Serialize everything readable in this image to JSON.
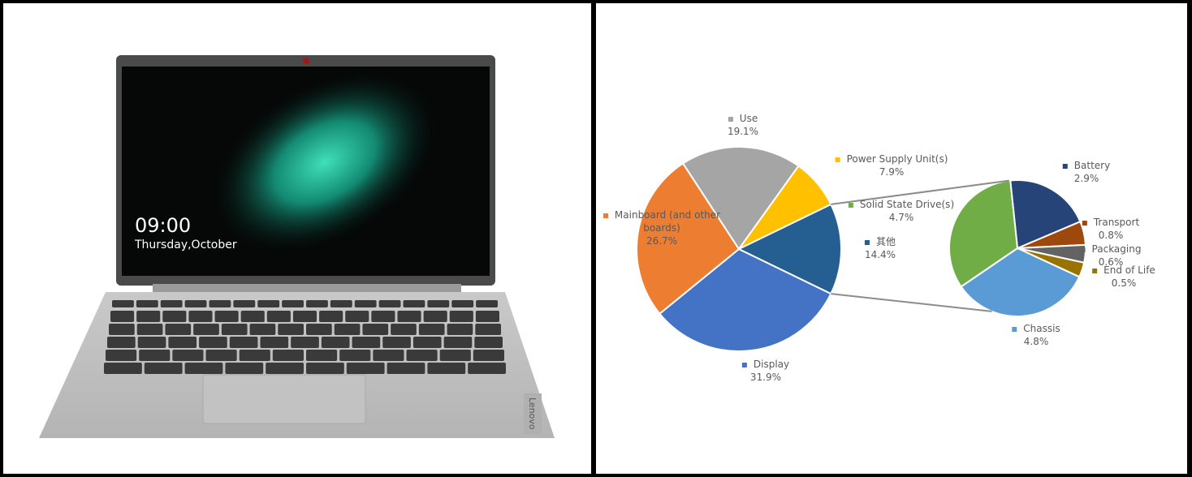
{
  "laptop": {
    "time": "09:00",
    "date": "Thursday,October",
    "brand": "Lenovo"
  },
  "chart_data": {
    "type": "pie-of-pie",
    "primary": {
      "categories": [
        "Display",
        "Mainboard (and other boards)",
        "Use",
        "Power Supply Unit(s)",
        "其他"
      ],
      "values": [
        31.9,
        26.7,
        19.1,
        7.9,
        14.4
      ],
      "value_labels": [
        "31.9%",
        "26.7%",
        "19.1%",
        "7.9%",
        "14.4%"
      ],
      "colors": [
        "#4472c4",
        "#ed7d31",
        "#a5a5a5",
        "#ffc000",
        "#255e91"
      ]
    },
    "secondary": {
      "categories": [
        "Battery",
        "Transport",
        "Packaging",
        "End of Life",
        "Chassis",
        "Solid State Drive(s)"
      ],
      "values": [
        2.9,
        0.8,
        0.6,
        0.5,
        4.8,
        4.7
      ],
      "value_labels": [
        "2.9%",
        "0.8%",
        "0.6%",
        "0.5%",
        "4.8%",
        "4.7%"
      ],
      "colors": [
        "#264478",
        "#9e480e",
        "#636363",
        "#997300",
        "#5b9bd5",
        "#70ad47"
      ]
    }
  }
}
